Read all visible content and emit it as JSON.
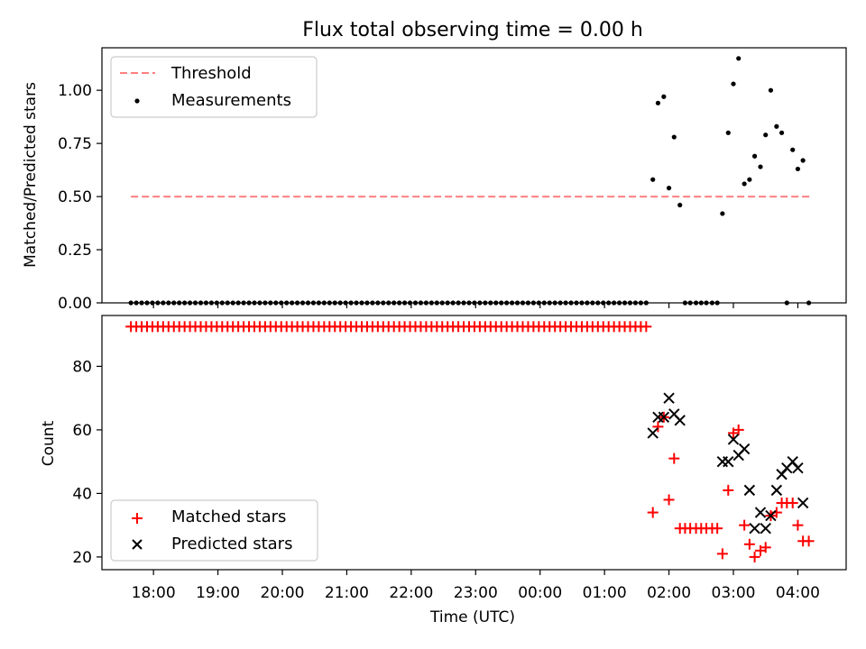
{
  "title": "Flux total observing time = 0.00 h",
  "colors": {
    "threshold": "#ff7f7f",
    "measurements": "#000000",
    "matched": "#ff0000",
    "predicted": "#000000"
  },
  "chart_data": [
    {
      "type": "scatter",
      "title": "Flux total observing time = 0.00 h",
      "ylabel": "Matched/Predicted stars",
      "xlim": [
        17.2,
        4.75
      ],
      "ylim": [
        0,
        1.2
      ],
      "yticks": [
        0.0,
        0.25,
        0.5,
        0.75,
        1.0
      ],
      "ytick_labels": [
        "0.00",
        "0.25",
        "0.50",
        "0.75",
        "1.00"
      ],
      "legend": [
        "Threshold",
        "Measurements"
      ],
      "legend_position": "upper left",
      "threshold": {
        "name": "Threshold",
        "value": 0.5,
        "x_range": [
          17.65,
          4.2
        ]
      },
      "measurements_zero": {
        "name": "Measurements",
        "x_start": 17.65,
        "x_end": 1.7,
        "step": 0.0833,
        "value": 0
      },
      "measurements": {
        "name": "Measurements",
        "x": [
          1.75,
          1.83,
          1.92,
          2.0,
          2.08,
          2.17,
          2.25,
          2.33,
          2.42,
          2.5,
          2.58,
          2.67,
          2.75,
          2.83,
          2.92,
          3.0,
          3.08,
          3.17,
          3.25,
          3.33,
          3.42,
          3.5,
          3.58,
          3.67,
          3.75,
          3.83,
          3.92,
          4.0,
          4.08,
          4.17
        ],
        "y": [
          0.58,
          0.94,
          0.97,
          0.54,
          0.78,
          0.46,
          0,
          0,
          0,
          0,
          0,
          0,
          0,
          0.42,
          0.8,
          1.03,
          1.15,
          0.56,
          0.58,
          0.69,
          0.64,
          0.79,
          1.0,
          0.83,
          0.8,
          0,
          0.72,
          0.63,
          0.67,
          0
        ]
      }
    },
    {
      "type": "scatter",
      "xlabel": "Time (UTC)",
      "ylabel": "Count",
      "xlim": [
        17.2,
        4.75
      ],
      "ylim": [
        16,
        96
      ],
      "xticks": [
        "18:00",
        "19:00",
        "20:00",
        "21:00",
        "22:00",
        "23:00",
        "00:00",
        "01:00",
        "02:00",
        "03:00",
        "04:00"
      ],
      "yticks": [
        20,
        40,
        60,
        80
      ],
      "legend": [
        "Matched stars",
        "Predicted stars"
      ],
      "legend_position": "lower left",
      "matched_flat": {
        "name": "Matched stars",
        "x_start": 17.65,
        "x_end": 1.7,
        "step": 0.0833,
        "value": 92.5
      },
      "matched": {
        "name": "Matched stars",
        "x": [
          1.75,
          1.83,
          1.92,
          2.0,
          2.08,
          2.17,
          2.25,
          2.33,
          2.42,
          2.5,
          2.58,
          2.67,
          2.75,
          2.83,
          2.92,
          3.0,
          3.08,
          3.17,
          3.25,
          3.33,
          3.42,
          3.5,
          3.58,
          3.67,
          3.75,
          3.83,
          3.92,
          4.0,
          4.08,
          4.17
        ],
        "y": [
          34,
          61,
          64,
          38,
          51,
          29,
          29,
          29,
          29,
          29,
          29,
          29,
          29,
          21,
          41,
          59,
          60,
          30,
          24,
          20,
          22,
          23,
          33,
          34,
          37,
          37,
          37,
          30,
          25,
          25
        ]
      },
      "predicted": {
        "name": "Predicted stars",
        "x": [
          1.75,
          1.83,
          1.92,
          2.0,
          2.08,
          2.17,
          2.83,
          2.92,
          3.0,
          3.08,
          3.17,
          3.25,
          3.33,
          3.42,
          3.5,
          3.58,
          3.67,
          3.75,
          3.83,
          3.92,
          4.0,
          4.08
        ],
        "y": [
          59,
          64,
          64,
          70,
          65,
          63,
          50,
          50,
          57,
          52,
          54,
          41,
          29,
          34,
          29,
          33,
          41,
          46,
          48,
          50,
          48,
          37
        ]
      }
    }
  ]
}
